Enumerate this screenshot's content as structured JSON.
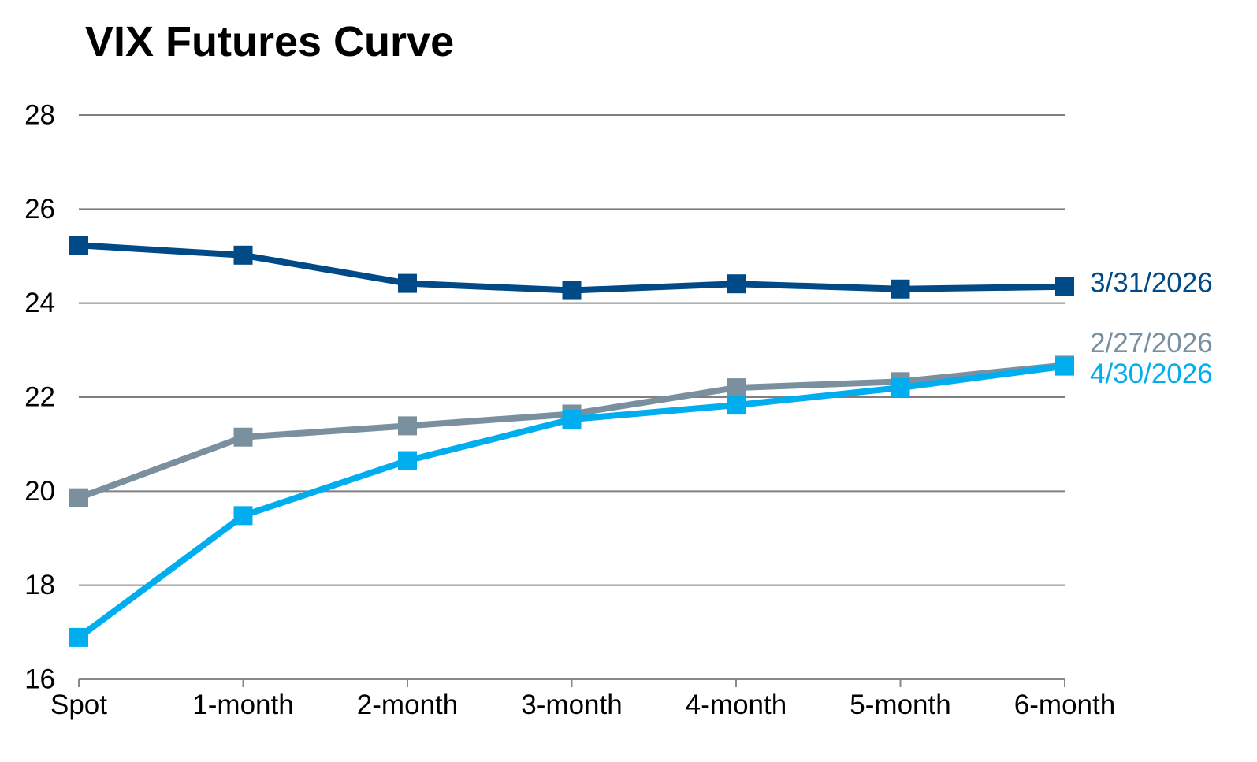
{
  "chart_data": {
    "type": "line",
    "title": "VIX Futures Curve",
    "xlabel": "",
    "ylabel": "",
    "categories": [
      "Spot",
      "1-month",
      "2-month",
      "3-month",
      "4-month",
      "5-month",
      "6-month"
    ],
    "ylim": [
      16,
      28
    ],
    "yticks": [
      16,
      18,
      20,
      22,
      24,
      26,
      28
    ],
    "grid": true,
    "legend": "inline-right",
    "series": [
      {
        "name": "3/31/2026",
        "color": "#004a87",
        "values": [
          25.23,
          25.02,
          24.42,
          24.27,
          24.41,
          24.3,
          24.35
        ]
      },
      {
        "name": "2/27/2026",
        "color": "#7b909e",
        "values": [
          19.86,
          21.15,
          21.39,
          21.64,
          22.2,
          22.33,
          22.68
        ]
      },
      {
        "name": "4/30/2026",
        "color": "#00aeef",
        "values": [
          16.89,
          19.48,
          20.65,
          21.53,
          21.83,
          22.2,
          22.66
        ]
      }
    ]
  }
}
